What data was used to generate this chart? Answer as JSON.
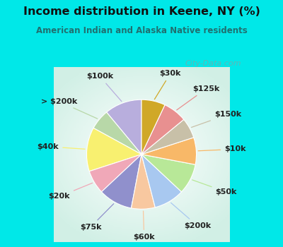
{
  "title": "Income distribution in Keene, NY (%)",
  "subtitle": "American Indian and Alaska Native residents",
  "bg_color": "#00e8e8",
  "chart_bg_outer": "#a8e8d8",
  "chart_bg_inner": "#f0f8f0",
  "labels": [
    "$100k",
    "> $200k",
    "$40k",
    "$20k",
    "$75k",
    "$60k",
    "$200k",
    "$50k",
    "$10k",
    "$150k",
    "$125k",
    "$30k"
  ],
  "values": [
    11,
    6,
    13,
    7,
    10,
    7,
    9,
    9,
    8,
    6,
    7,
    7
  ],
  "colors": [
    "#b8aedd",
    "#b8d8a8",
    "#f8f070",
    "#f0a8b8",
    "#9090cc",
    "#f8c8a0",
    "#a8c8f0",
    "#b8e898",
    "#f8b868",
    "#c8c0a8",
    "#e89090",
    "#d0a828"
  ],
  "wedge_linewidth": 0.8,
  "wedge_linecolor": "#ffffff",
  "label_fontsize": 8,
  "watermark": "City-Data.com"
}
